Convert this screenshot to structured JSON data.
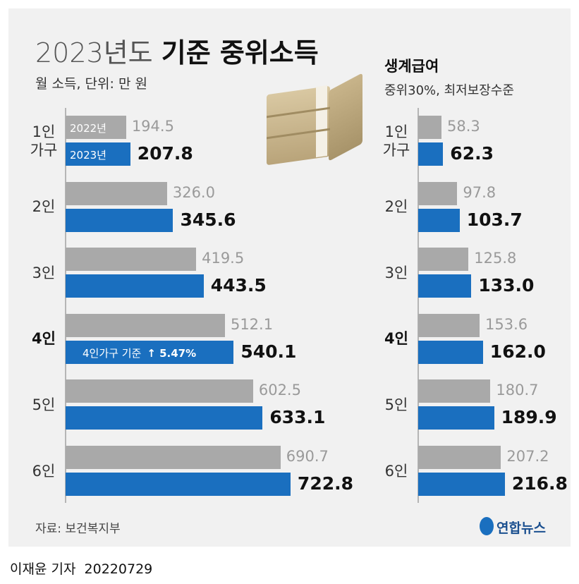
{
  "header": {
    "title_light": "2023년도",
    "title_bold": "기준 중위소득",
    "subtitle": "월 소득, 단위: 만 원"
  },
  "chart_data": [
    {
      "type": "bar",
      "orientation": "horizontal",
      "categories": [
        "1인 가구",
        "2인",
        "3인",
        "4인",
        "5인",
        "6인"
      ],
      "bold_category_index": 3,
      "series": [
        {
          "name": "2022년",
          "color": "#a9a9a9",
          "values": [
            194.5,
            326.0,
            419.5,
            512.1,
            602.5,
            690.7
          ],
          "value_labels": [
            "194.5",
            "326.0",
            "419.5",
            "512.1",
            "602.5",
            "690.7"
          ]
        },
        {
          "name": "2023년",
          "color": "#1a6fbf",
          "values": [
            207.8,
            345.6,
            443.5,
            540.1,
            633.1,
            722.8
          ],
          "value_labels": [
            "207.8",
            "345.6",
            "443.5",
            "540.1",
            "633.1",
            "722.8"
          ]
        }
      ],
      "annotation": {
        "category_index": 3,
        "text": "4인가구 기준",
        "change": "↑ 5.47%"
      },
      "xlim": [
        0,
        800
      ]
    },
    {
      "type": "bar",
      "orientation": "horizontal",
      "title": "생계급여",
      "subtitle": "중위30%, 최저보장수준",
      "categories": [
        "1인 가구",
        "2인",
        "3인",
        "4인",
        "5인",
        "6인"
      ],
      "bold_category_index": 3,
      "series": [
        {
          "color": "#a9a9a9",
          "values": [
            58.3,
            97.8,
            125.8,
            153.6,
            180.7,
            207.2
          ],
          "value_labels": [
            "58.3",
            "97.8",
            "125.8",
            "153.6",
            "180.7",
            "207.2"
          ]
        },
        {
          "color": "#1a6fbf",
          "values": [
            62.3,
            103.7,
            133.0,
            162.0,
            189.9,
            216.8
          ],
          "value_labels": [
            "62.3",
            "103.7",
            "133.0",
            "162.0",
            "189.9",
            "216.8"
          ]
        }
      ],
      "xlim": [
        0,
        300
      ]
    }
  ],
  "footer": {
    "source": "자료: 보건복지부",
    "logo": "연합뉴스",
    "byline": "이재윤 기자",
    "date": "20220729"
  }
}
